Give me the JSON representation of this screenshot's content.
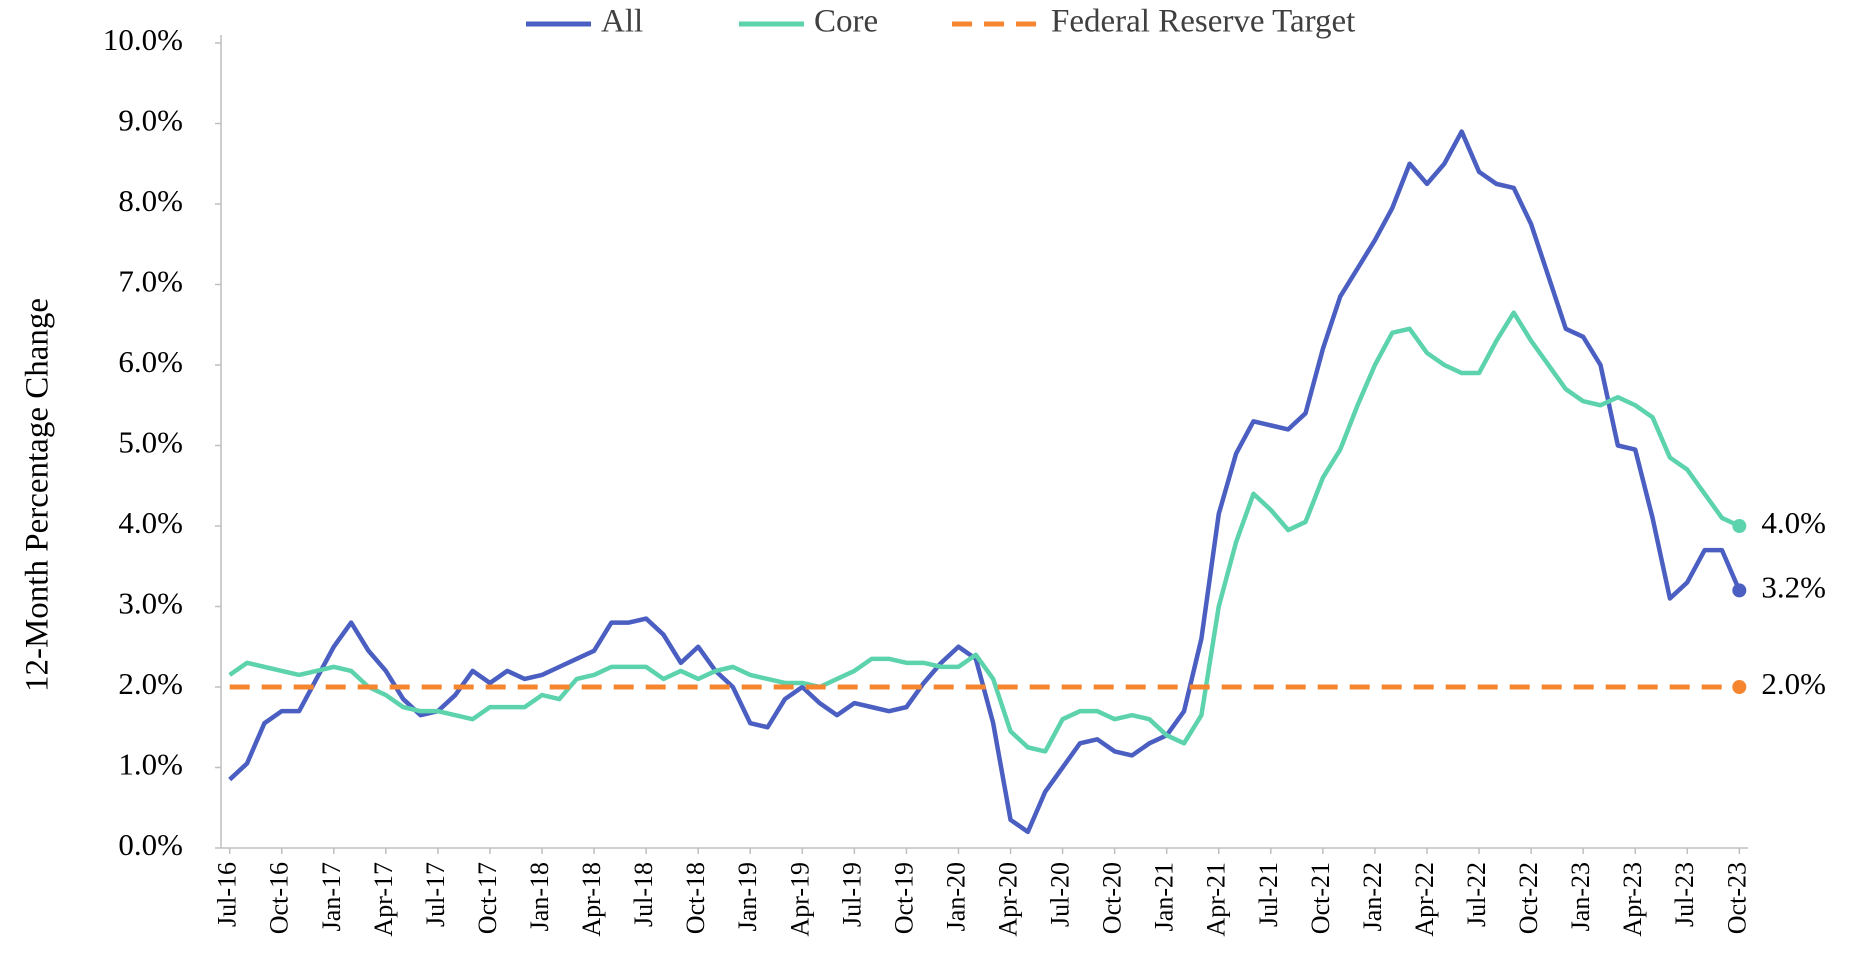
{
  "chart_data": {
    "type": "line",
    "y_label": "12-Month Percentage Change",
    "legend": "top",
    "categories": [
      "Jul-16",
      null,
      null,
      "Oct-16",
      null,
      null,
      "Jan-17",
      null,
      null,
      "Apr-17",
      null,
      null,
      "Jul-17",
      null,
      null,
      "Oct-17",
      null,
      null,
      "Jan-18",
      null,
      null,
      "Apr-18",
      null,
      null,
      "Jul-18",
      null,
      null,
      "Oct-18",
      null,
      null,
      "Jan-19",
      null,
      null,
      "Apr-19",
      null,
      null,
      "Jul-19",
      null,
      null,
      "Oct-19",
      null,
      null,
      "Jan-20",
      null,
      null,
      "Apr-20",
      null,
      null,
      "Jul-20",
      null,
      null,
      "Oct-20",
      null,
      null,
      "Jan-21",
      null,
      null,
      "Apr-21",
      null,
      null,
      "Jul-21",
      null,
      null,
      "Oct-21",
      null,
      null,
      "Jan-22",
      null,
      null,
      "Apr-22",
      null,
      null,
      "Jul-22",
      null,
      null,
      "Oct-22",
      null,
      null,
      "Jan-23",
      null,
      null,
      "Apr-23",
      null,
      null,
      "Jul-23",
      null,
      null,
      "Oct-23"
    ],
    "series": [
      {
        "name": "All",
        "color": "#4a5fc1",
        "dash": false,
        "end_label": "3.2%",
        "values": [
          0.85,
          1.05,
          1.55,
          1.7,
          1.7,
          2.1,
          2.5,
          2.8,
          2.45,
          2.2,
          1.85,
          1.65,
          1.7,
          1.9,
          2.2,
          2.05,
          2.2,
          2.1,
          2.15,
          2.25,
          2.35,
          2.45,
          2.8,
          2.8,
          2.85,
          2.65,
          2.3,
          2.5,
          2.2,
          2.0,
          1.55,
          1.5,
          1.85,
          2.0,
          1.8,
          1.65,
          1.8,
          1.75,
          1.7,
          1.75,
          2.05,
          2.3,
          2.5,
          2.35,
          1.55,
          0.35,
          0.2,
          0.7,
          1.0,
          1.3,
          1.35,
          1.2,
          1.15,
          1.3,
          1.4,
          1.7,
          2.6,
          4.15,
          4.9,
          5.3,
          5.25,
          5.2,
          5.4,
          6.2,
          6.85,
          7.2,
          7.55,
          7.95,
          8.5,
          8.25,
          8.5,
          8.9,
          8.4,
          8.25,
          8.2,
          7.75,
          7.1,
          6.45,
          6.35,
          6.0,
          5.0,
          4.95,
          4.1,
          3.1,
          3.3,
          3.7,
          3.7,
          3.2
        ]
      },
      {
        "name": "Core",
        "color": "#5dd3ad",
        "dash": false,
        "end_label": "4.0%",
        "values": [
          2.15,
          2.3,
          2.25,
          2.2,
          2.15,
          2.2,
          2.25,
          2.2,
          2.0,
          1.9,
          1.75,
          1.7,
          1.7,
          1.65,
          1.6,
          1.75,
          1.75,
          1.75,
          1.9,
          1.85,
          2.1,
          2.15,
          2.25,
          2.25,
          2.25,
          2.1,
          2.2,
          2.1,
          2.2,
          2.25,
          2.15,
          2.1,
          2.05,
          2.05,
          2.0,
          2.1,
          2.2,
          2.35,
          2.35,
          2.3,
          2.3,
          2.25,
          2.25,
          2.4,
          2.1,
          1.45,
          1.25,
          1.2,
          1.6,
          1.7,
          1.7,
          1.6,
          1.65,
          1.6,
          1.4,
          1.3,
          1.65,
          3.0,
          3.8,
          4.4,
          4.2,
          3.95,
          4.05,
          4.6,
          4.95,
          5.5,
          6.0,
          6.4,
          6.45,
          6.15,
          6.0,
          5.9,
          5.9,
          6.3,
          6.65,
          6.3,
          6.0,
          5.7,
          5.55,
          5.5,
          5.6,
          5.5,
          5.35,
          4.85,
          4.7,
          4.4,
          4.1,
          4.0
        ]
      },
      {
        "name": "Federal Reserve Target",
        "color": "#f5862f",
        "dash": true,
        "end_label": "2.0%",
        "values": [
          2,
          2,
          2,
          2,
          2,
          2,
          2,
          2,
          2,
          2,
          2,
          2,
          2,
          2,
          2,
          2,
          2,
          2,
          2,
          2,
          2,
          2,
          2,
          2,
          2,
          2,
          2,
          2,
          2,
          2,
          2,
          2,
          2,
          2,
          2,
          2,
          2,
          2,
          2,
          2,
          2,
          2,
          2,
          2,
          2,
          2,
          2,
          2,
          2,
          2,
          2,
          2,
          2,
          2,
          2,
          2,
          2,
          2,
          2,
          2,
          2,
          2,
          2,
          2,
          2,
          2,
          2,
          2,
          2,
          2,
          2,
          2,
          2,
          2,
          2,
          2,
          2,
          2,
          2,
          2,
          2,
          2,
          2,
          2,
          2,
          2,
          2,
          2
        ]
      }
    ],
    "ylim": [
      0,
      10
    ],
    "yticks": [
      {
        "value": 0,
        "label": "0.0%"
      },
      {
        "value": 1,
        "label": "1.0%"
      },
      {
        "value": 2,
        "label": "2.0%"
      },
      {
        "value": 3,
        "label": "3.0%"
      },
      {
        "value": 4,
        "label": "4.0%"
      },
      {
        "value": 5,
        "label": "5.0%"
      },
      {
        "value": 6,
        "label": "6.0%"
      },
      {
        "value": 7,
        "label": "7.0%"
      },
      {
        "value": 8,
        "label": "8.0%"
      },
      {
        "value": 9,
        "label": "9.0%"
      },
      {
        "value": 10,
        "label": "10.0%"
      }
    ],
    "grid": false
  }
}
